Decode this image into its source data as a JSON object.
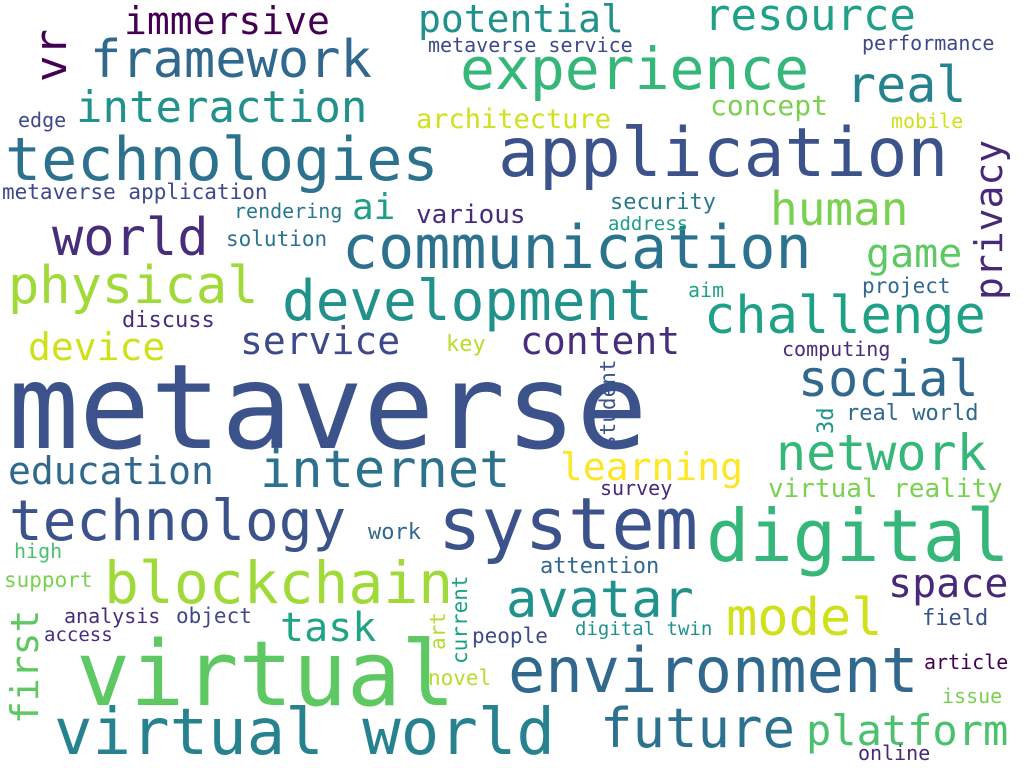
{
  "words": [
    {
      "text": "metaverse",
      "color": "#3b528b"
    },
    {
      "text": "virtual",
      "color": "#5ec962"
    },
    {
      "text": "virtual world",
      "color": "#26828e"
    },
    {
      "text": "application",
      "color": "#3b528b"
    },
    {
      "text": "communication",
      "color": "#2c728e"
    },
    {
      "text": "system",
      "color": "#3b528b"
    },
    {
      "text": "digital",
      "color": "#35b779"
    },
    {
      "text": "environment",
      "color": "#31688e"
    },
    {
      "text": "technologies",
      "color": "#2c728e"
    },
    {
      "text": "development",
      "color": "#21918c"
    },
    {
      "text": "experience",
      "color": "#35b779"
    },
    {
      "text": "blockchain",
      "color": "#a0da39"
    },
    {
      "text": "technology",
      "color": "#3b528b"
    },
    {
      "text": "internet",
      "color": "#2c728e"
    },
    {
      "text": "framework",
      "color": "#31688e"
    },
    {
      "text": "challenge",
      "color": "#1fa187"
    },
    {
      "text": "physical",
      "color": "#a0da39"
    },
    {
      "text": "future",
      "color": "#2c728e"
    },
    {
      "text": "avatar",
      "color": "#21918c"
    },
    {
      "text": "interaction",
      "color": "#21918c"
    },
    {
      "text": "network",
      "color": "#35b779"
    },
    {
      "text": "platform",
      "color": "#4ac16d"
    },
    {
      "text": "world",
      "color": "#472d7b"
    },
    {
      "text": "model",
      "color": "#d0e11c"
    },
    {
      "text": "resource",
      "color": "#1fa187"
    },
    {
      "text": "social",
      "color": "#31688e"
    },
    {
      "text": "education",
      "color": "#31688e"
    },
    {
      "text": "potential",
      "color": "#21918c"
    },
    {
      "text": "immersive",
      "color": "#440154"
    },
    {
      "text": "human",
      "color": "#7ad151"
    },
    {
      "text": "real",
      "color": "#26828e"
    },
    {
      "text": "learning",
      "color": "#fde725"
    },
    {
      "text": "content",
      "color": "#472d7b"
    },
    {
      "text": "space",
      "color": "#482878"
    },
    {
      "text": "service",
      "color": "#3e4989"
    },
    {
      "text": "device",
      "color": "#d0e11c"
    },
    {
      "text": "game",
      "color": "#5ec962"
    },
    {
      "text": "task",
      "color": "#20a486"
    },
    {
      "text": "privacy",
      "color": "#482878"
    },
    {
      "text": "vr",
      "color": "#440154"
    },
    {
      "text": "first",
      "color": "#5ec962"
    },
    {
      "text": "ai",
      "color": "#1f9e89"
    },
    {
      "text": "virtual reality",
      "color": "#7ad151"
    },
    {
      "text": "architecture",
      "color": "#d0e11c"
    },
    {
      "text": "concept",
      "color": "#7ad151"
    },
    {
      "text": "various",
      "color": "#472d7b"
    },
    {
      "text": "metaverse service",
      "color": "#3e4989"
    },
    {
      "text": "performance",
      "color": "#3e4989"
    },
    {
      "text": "metaverse application",
      "color": "#3e4989"
    },
    {
      "text": "security",
      "color": "#2a788e"
    },
    {
      "text": "rendering",
      "color": "#2a788e"
    },
    {
      "text": "address",
      "color": "#1f9e89"
    },
    {
      "text": "solution",
      "color": "#2c728e"
    },
    {
      "text": "mobile",
      "color": "#d0e11c"
    },
    {
      "text": "edge",
      "color": "#3e4989"
    },
    {
      "text": "discuss",
      "color": "#472d7b"
    },
    {
      "text": "aim",
      "color": "#1fa187"
    },
    {
      "text": "project",
      "color": "#31688e"
    },
    {
      "text": "key",
      "color": "#b5de2b"
    },
    {
      "text": "computing",
      "color": "#472d7b"
    },
    {
      "text": "real world",
      "color": "#31688e"
    },
    {
      "text": "3d",
      "color": "#21918c"
    },
    {
      "text": "student",
      "color": "#3b528b"
    },
    {
      "text": "survey",
      "color": "#482878"
    },
    {
      "text": "work",
      "color": "#31688e"
    },
    {
      "text": "high",
      "color": "#4ac16d"
    },
    {
      "text": "attention",
      "color": "#31688e"
    },
    {
      "text": "support",
      "color": "#7ad151"
    },
    {
      "text": "analysis",
      "color": "#472d7b"
    },
    {
      "text": "object",
      "color": "#3e4989"
    },
    {
      "text": "access",
      "color": "#472d7b"
    },
    {
      "text": "digital twin",
      "color": "#21918c"
    },
    {
      "text": "people",
      "color": "#3e4989"
    },
    {
      "text": "art",
      "color": "#b5de2b"
    },
    {
      "text": "current",
      "color": "#1fa187"
    },
    {
      "text": "field",
      "color": "#3b528b"
    },
    {
      "text": "article",
      "color": "#440154"
    },
    {
      "text": "novel",
      "color": "#b5de2b"
    },
    {
      "text": "issue",
      "color": "#7ad151"
    },
    {
      "text": "online",
      "color": "#482878"
    }
  ]
}
